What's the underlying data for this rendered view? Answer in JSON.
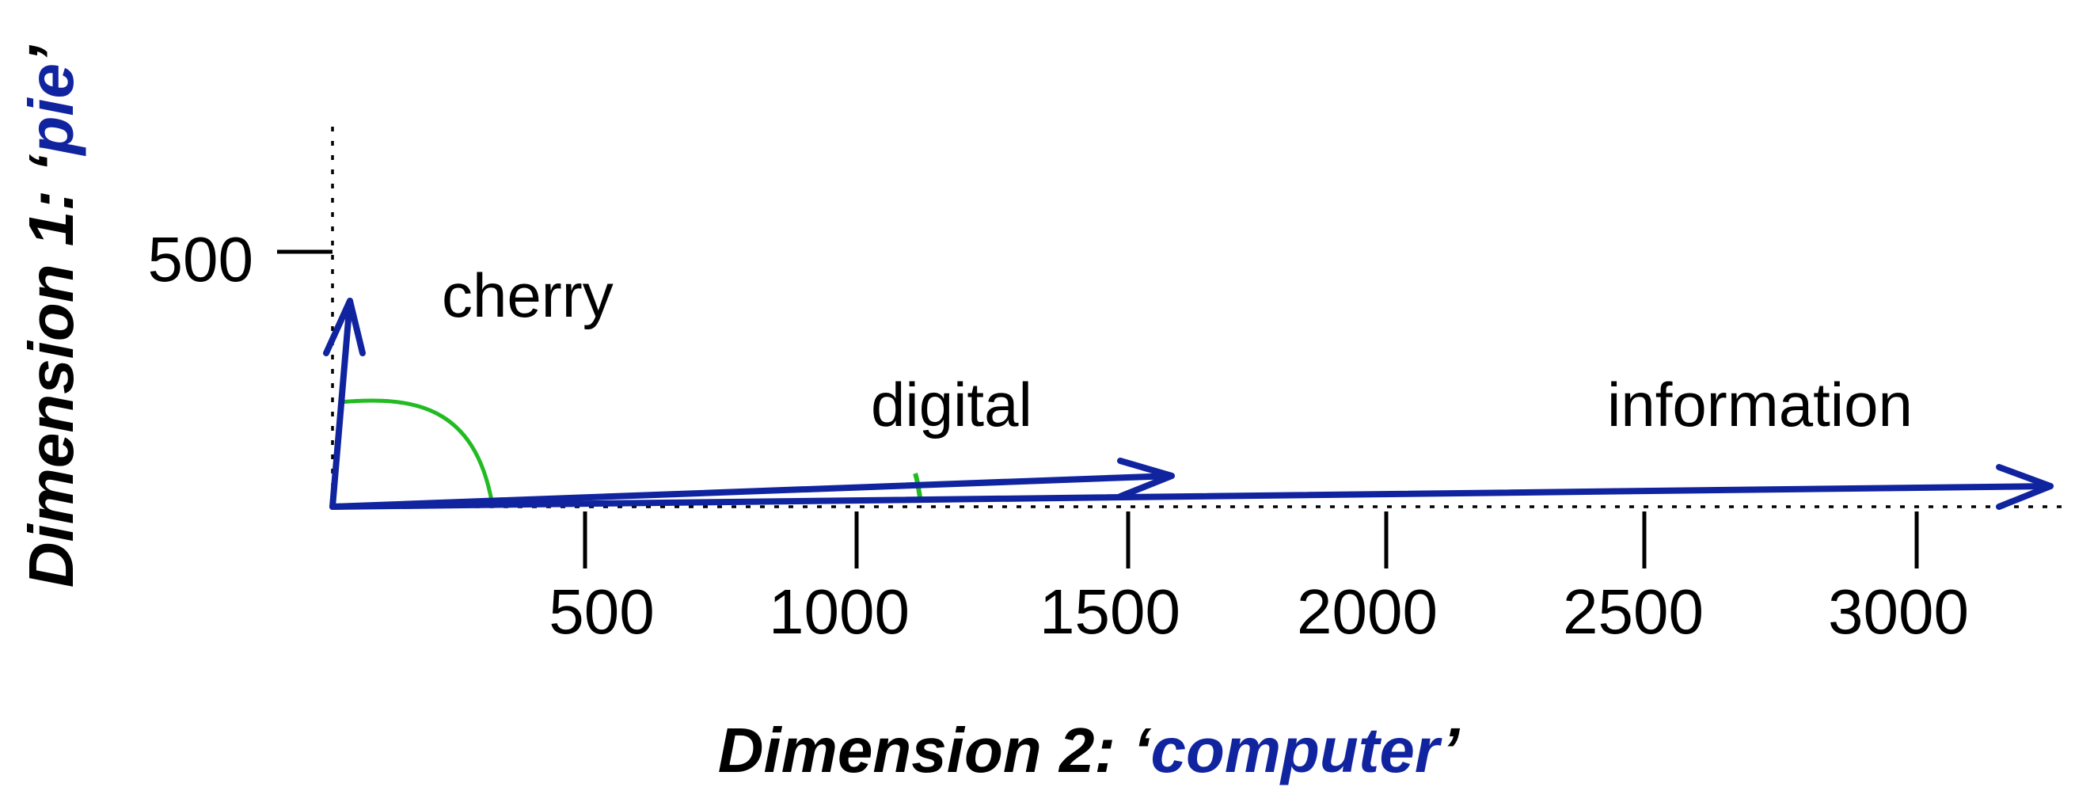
{
  "colors": {
    "vector": "#1124a0",
    "angle": "#22bb22",
    "axis": "#000000",
    "highlight": "#1124a0"
  },
  "axes": {
    "x_title_prefix": "Dimension 2: ‘",
    "x_title_term": "computer",
    "x_title_suffix": "’",
    "y_title_prefix": "Dimension 1: ‘",
    "y_title_term": "pie",
    "y_title_suffix": "’",
    "x_ticks": [
      "500",
      "1000",
      "1500",
      "2000",
      "2500",
      "3000"
    ],
    "y_ticks": [
      "500"
    ]
  },
  "vectors": [
    {
      "label": "cherry",
      "x": 30,
      "y": 442
    },
    {
      "label": "digital",
      "x": 1600,
      "y": 50
    },
    {
      "label": "information",
      "x": 3300,
      "y": 45
    }
  ]
}
